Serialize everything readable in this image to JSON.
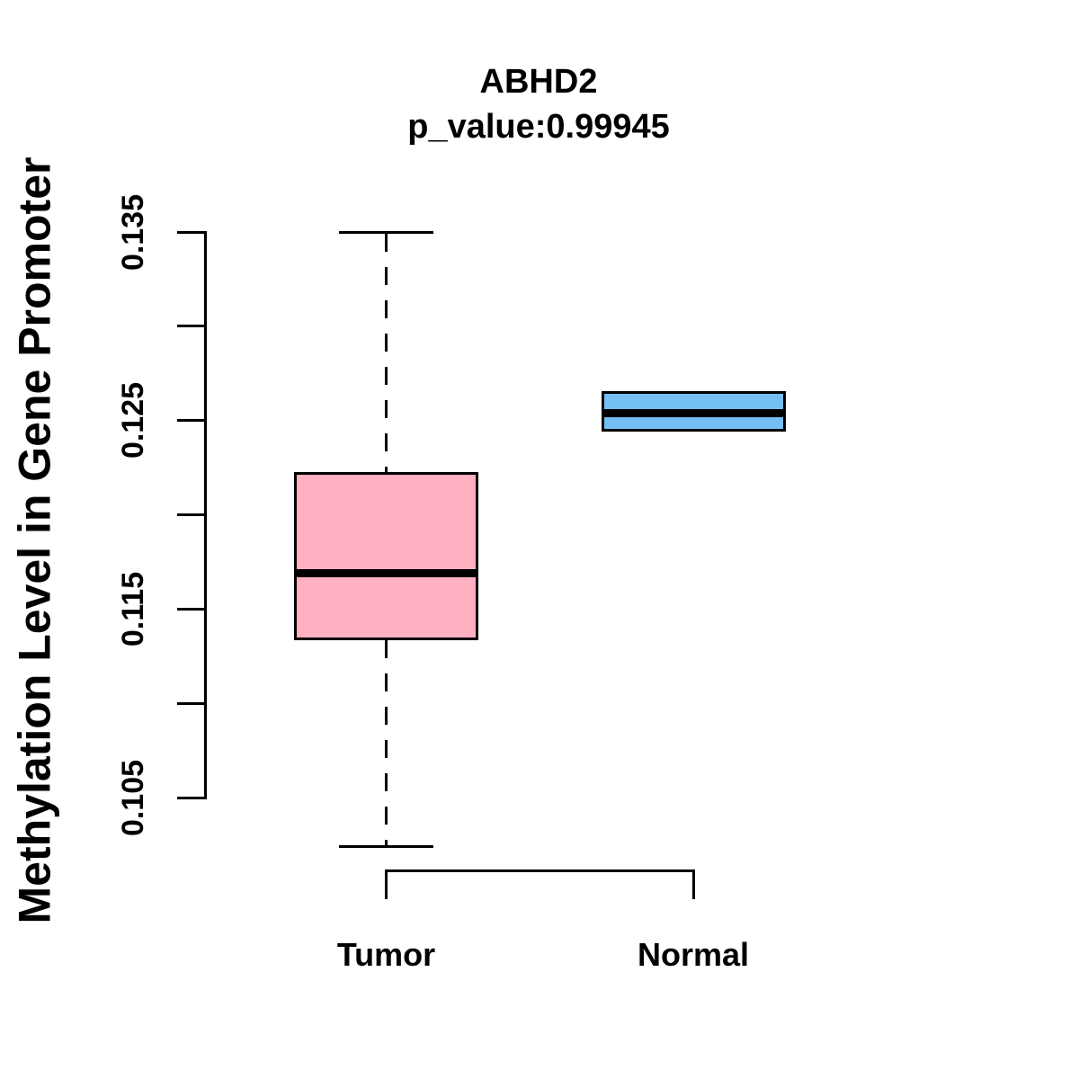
{
  "title": "ABHD2",
  "subtitle": "p_value:0.99945",
  "y_axis": {
    "label": "Methylation Level in Gene Promoter",
    "ticks": [
      0.105,
      0.11,
      0.115,
      0.12,
      0.125,
      0.13,
      0.135
    ],
    "labeled_ticks": [
      "0.105",
      "0.115",
      "0.125",
      "0.135"
    ]
  },
  "x_axis": {
    "categories": [
      "Tumor",
      "Normal"
    ]
  },
  "colors": {
    "tumor_fill": "#FFB0C1",
    "normal_fill": "#74BFF4",
    "line": "#000000",
    "background": "#FFFFFF"
  },
  "chart_data": {
    "type": "boxplot",
    "title": "ABHD2",
    "subtitle": "p_value:0.99945",
    "ylabel": "Methylation Level in Gene Promoter",
    "xlabel": "",
    "categories": [
      "Tumor",
      "Normal"
    ],
    "ylim": [
      0.1015,
      0.1355
    ],
    "y_tick_interval": 0.005,
    "grid": false,
    "legend": false,
    "series": [
      {
        "name": "Tumor",
        "fill_color": "#FFB0C1",
        "lower_whisker": 0.1024,
        "q1": 0.1134,
        "median": 0.1169,
        "q3": 0.1222,
        "upper_whisker": 0.135
      },
      {
        "name": "Normal",
        "fill_color": "#74BFF4",
        "lower_whisker": 0.1245,
        "q1": 0.1245,
        "median": 0.1254,
        "q3": 0.1265,
        "upper_whisker": 0.1265
      }
    ]
  }
}
